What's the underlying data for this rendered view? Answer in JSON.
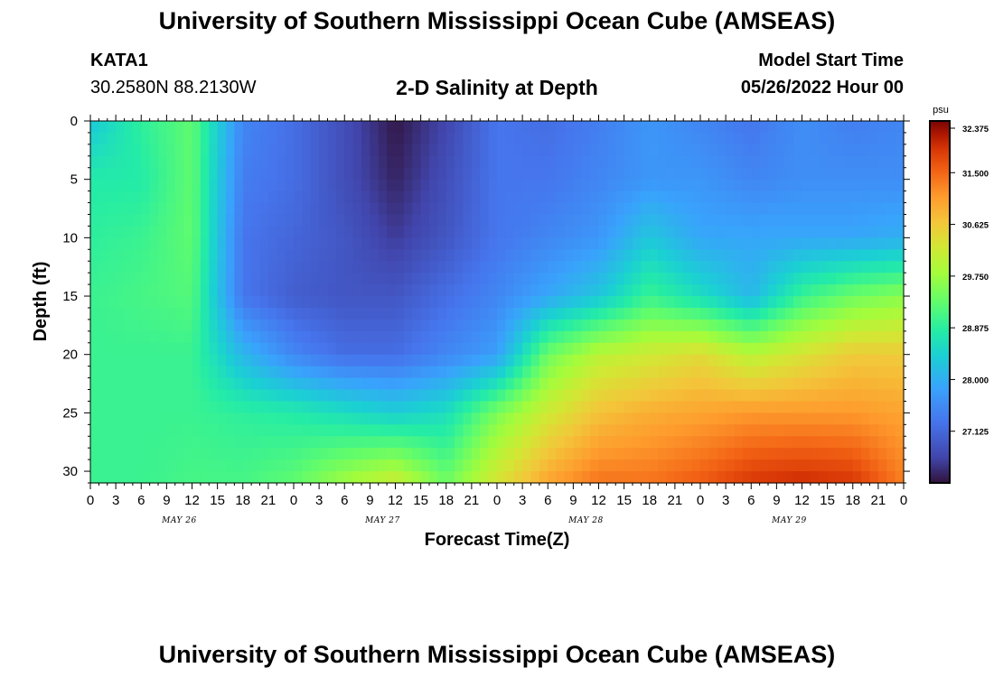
{
  "header": {
    "title": "University of Southern Mississippi Ocean Cube (AMSEAS)",
    "station": "KATA1",
    "coords": "30.2580N  88.2130W",
    "subtitle": "2-D Salinity at Depth",
    "model_start_label": "Model Start Time",
    "model_start_value": "05/26/2022 Hour 00"
  },
  "footer": {
    "title": "University of Southern Mississippi Ocean Cube (AMSEAS)"
  },
  "chart_data": {
    "type": "heatmap",
    "title": "2-D Salinity at Depth",
    "xlabel": "Forecast Time(Z)",
    "ylabel": "Depth (ft)",
    "x_hours": [
      0,
      6,
      12,
      18,
      24,
      30,
      36,
      42,
      48,
      54,
      60,
      66,
      72,
      78,
      84,
      90,
      96
    ],
    "x_tick_labels": [
      "0",
      "3",
      "6",
      "9",
      "12",
      "15",
      "18",
      "21",
      "0",
      "3",
      "6",
      "9",
      "12",
      "15",
      "18",
      "21",
      "0",
      "3",
      "6",
      "9",
      "12",
      "15",
      "18",
      "21",
      "0",
      "3",
      "6",
      "9",
      "12",
      "15",
      "18",
      "21",
      "0"
    ],
    "day_labels": [
      "MAY 26",
      "MAY 27",
      "MAY 28",
      "MAY 29"
    ],
    "y_depths_ft": [
      0,
      5,
      10,
      15,
      20,
      25,
      31
    ],
    "y_tick_labels": [
      "0",
      "5",
      "10",
      "15",
      "20",
      "25",
      "30"
    ],
    "ylim": [
      31,
      0
    ],
    "xlim_hours": [
      0,
      96
    ],
    "colorbar": {
      "unit": "psu",
      "min": 26.25,
      "max": 32.375,
      "tick_values": [
        32.375,
        31.5,
        30.625,
        29.75,
        28.875,
        28.0,
        27.125
      ],
      "tick_labels": [
        "32.375",
        "31.500",
        "30.625",
        "29.750",
        "28.875",
        "28.000",
        "27.125"
      ]
    },
    "salinity_psu": [
      [
        28.3,
        28.9,
        29.3,
        27.5,
        27.2,
        26.8,
        26.3,
        26.7,
        27.3,
        27.2,
        27.4,
        27.7,
        27.5,
        27.3,
        27.6,
        27.4,
        27.5
      ],
      [
        28.8,
        28.8,
        29.3,
        27.4,
        27.2,
        26.8,
        26.4,
        26.8,
        27.3,
        27.3,
        27.5,
        27.7,
        27.7,
        27.5,
        27.6,
        27.6,
        27.6
      ],
      [
        28.9,
        29.0,
        29.3,
        27.3,
        27.1,
        26.9,
        26.6,
        26.9,
        27.3,
        27.5,
        27.7,
        28.3,
        27.9,
        27.9,
        27.9,
        27.9,
        28.0
      ],
      [
        29.0,
        29.1,
        29.2,
        27.3,
        27.0,
        26.9,
        26.9,
        27.2,
        27.5,
        27.9,
        28.3,
        29.0,
        28.6,
        28.1,
        29.0,
        29.4,
        29.6
      ],
      [
        29.0,
        29.0,
        29.0,
        28.1,
        27.5,
        27.2,
        27.2,
        27.5,
        27.8,
        29.4,
        30.0,
        30.2,
        30.4,
        30.0,
        30.3,
        30.6,
        30.6
      ],
      [
        29.0,
        29.0,
        29.0,
        28.9,
        28.8,
        28.6,
        28.4,
        28.6,
        29.5,
        30.2,
        30.7,
        30.9,
        31.0,
        31.1,
        31.1,
        31.1,
        31.0
      ],
      [
        29.0,
        29.0,
        29.1,
        29.1,
        29.3,
        29.8,
        30.2,
        29.4,
        30.3,
        31.0,
        31.4,
        31.4,
        31.6,
        31.9,
        32.0,
        31.9,
        31.3
      ]
    ]
  }
}
